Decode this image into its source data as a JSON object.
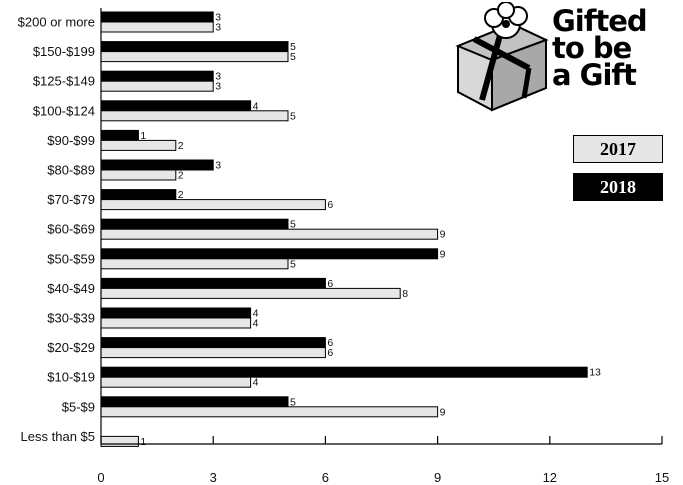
{
  "title_lines": [
    "Gifted",
    "to be",
    "a Gift"
  ],
  "chart_data": {
    "type": "bar",
    "orientation": "horizontal",
    "title": "Gifted to be a Gift",
    "xlim": [
      0,
      15
    ],
    "xticks": [
      0,
      3,
      6,
      9,
      12,
      15
    ],
    "categories": [
      "$200 or more",
      "$150-$199",
      "$125-$149",
      "$100-$124",
      "$90-$99",
      "$80-$89",
      "$70-$79",
      "$60-$69",
      "$50-$59",
      "$40-$49",
      "$30-$39",
      "$20-$29",
      "$10-$19",
      "$5-$9",
      "Less than $5"
    ],
    "series": [
      {
        "name": "2018",
        "color": "#000000",
        "values": [
          3,
          5,
          3,
          4,
          1,
          3,
          2,
          5,
          9,
          6,
          4,
          6,
          13,
          5,
          null
        ]
      },
      {
        "name": "2017",
        "color": "#e6e6e6",
        "values": [
          3,
          5,
          3,
          5,
          2,
          2,
          6,
          9,
          5,
          8,
          4,
          6,
          4,
          9,
          1
        ]
      }
    ],
    "legend": [
      "2017",
      "2018"
    ],
    "legend_position": "right",
    "grid": false
  }
}
